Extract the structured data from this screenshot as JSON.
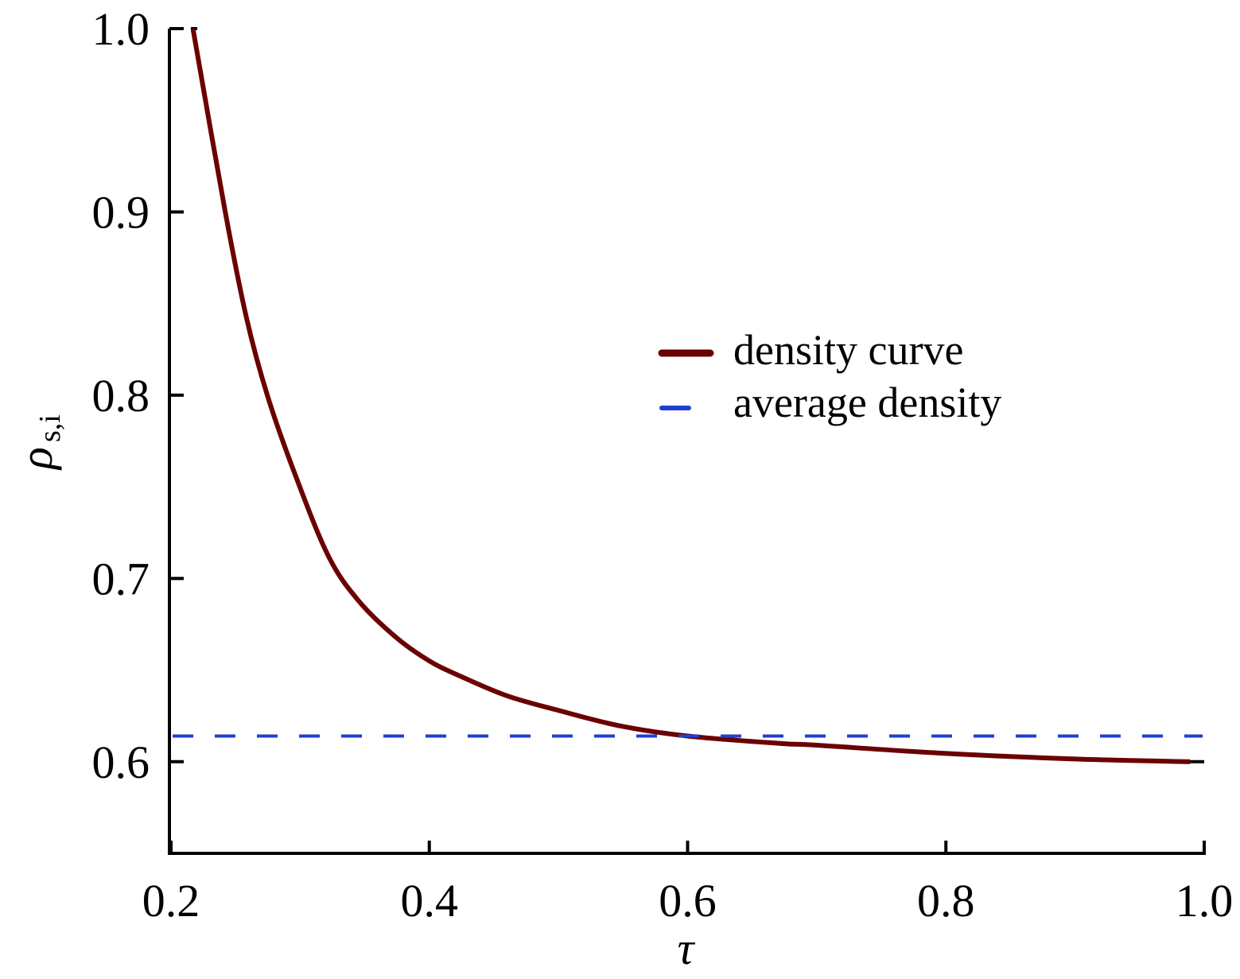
{
  "chart_data": {
    "type": "line",
    "title": "",
    "xlabel": "τ",
    "ylabel": {
      "main": "ρ",
      "subscript": "s,i"
    },
    "xlim": [
      0.2,
      1.0
    ],
    "ylim": [
      0.55,
      1.0
    ],
    "xticks": [
      0.2,
      0.4,
      0.6,
      0.8,
      1.0
    ],
    "xtick_labels": [
      "0.2",
      "0.4",
      "0.6",
      "0.8",
      "1.0"
    ],
    "yticks": [
      0.6,
      0.7,
      0.8,
      0.9,
      1.0
    ],
    "ytick_labels": [
      "0.6",
      "0.7",
      "0.8",
      "0.9",
      "1.0"
    ],
    "grid": false,
    "legend_position": "center-right",
    "series": [
      {
        "name": "density curve",
        "style": "solid",
        "color": "#6b0000",
        "x": [
          0.217,
          0.242,
          0.2585,
          0.275,
          0.297,
          0.322,
          0.345,
          0.374,
          0.4,
          0.423,
          0.46,
          0.5,
          0.548,
          0.6,
          0.671,
          0.7,
          0.8,
          0.9,
          0.989
        ],
        "y": [
          1.0,
          0.9,
          0.842,
          0.799,
          0.755,
          0.712,
          0.688,
          0.668,
          0.655,
          0.647,
          0.636,
          0.628,
          0.6195,
          0.614,
          0.61,
          0.609,
          0.6045,
          0.6015,
          0.6
        ]
      },
      {
        "name": "average density",
        "style": "dashed",
        "color": "#1f3fd1",
        "x": [
          0.2,
          1.0
        ],
        "y": [
          0.614,
          0.614
        ]
      }
    ]
  }
}
